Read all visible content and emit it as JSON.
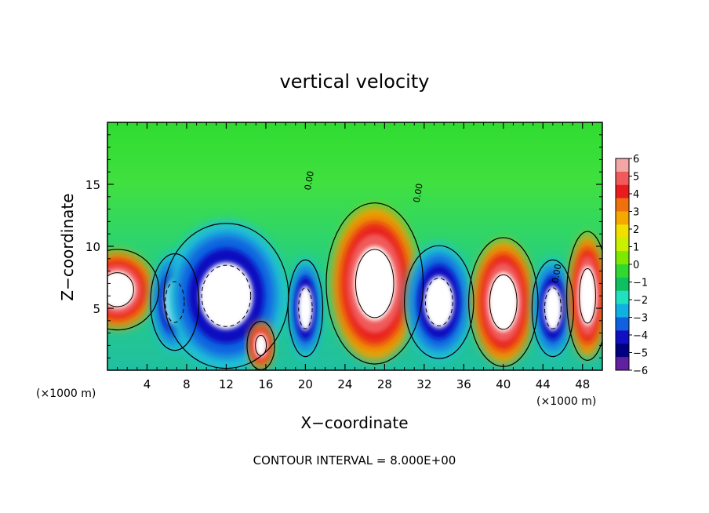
{
  "chart_data": {
    "type": "heatmap",
    "title": "vertical velocity",
    "xlabel": "X−coordinate",
    "ylabel": "Z−coordinate",
    "x_unit_left": "(×1000 m)",
    "x_unit_right": "(×1000 m)",
    "footer": "CONTOUR INTERVAL = 8.000E+00",
    "xlim": [
      0,
      50
    ],
    "ylim": [
      0,
      20
    ],
    "x_ticks": [
      "4",
      "8",
      "12",
      "16",
      "20",
      "24",
      "28",
      "32",
      "36",
      "40",
      "44",
      "48"
    ],
    "x_tick_values": [
      4,
      8,
      12,
      16,
      20,
      24,
      28,
      32,
      36,
      40,
      44,
      48
    ],
    "y_ticks": [
      "5",
      "10",
      "15"
    ],
    "y_tick_values": [
      5,
      10,
      15
    ],
    "contour_label": "0.00",
    "colorbar": {
      "min": -6,
      "max": 6,
      "labels": [
        "6",
        "5",
        "4",
        "3",
        "2",
        "1",
        "0",
        "−1",
        "−2",
        "−3",
        "−4",
        "−5",
        "−6"
      ],
      "label_values": [
        6,
        5,
        4,
        3,
        2,
        1,
        0,
        -1,
        -2,
        -3,
        -4,
        -5,
        -6
      ],
      "colors": [
        "#f2a6a6",
        "#f05a5a",
        "#e81c1c",
        "#f07010",
        "#f5a800",
        "#f0e000",
        "#c8f000",
        "#80e800",
        "#30d830",
        "#10c060",
        "#20e0c0",
        "#10b0e0",
        "#1060e0",
        "#1010c0",
        "#000080",
        "#6020a0"
      ]
    },
    "features": [
      {
        "x": 1.0,
        "z": 6.5,
        "w": 6,
        "h": 5,
        "sign": "up"
      },
      {
        "x": 6.8,
        "z": 5.5,
        "w": 3.5,
        "h": 6,
        "sign": "down"
      },
      {
        "x": 12.0,
        "z": 6.0,
        "w": 9,
        "h": 9,
        "sign": "down"
      },
      {
        "x": 15.5,
        "z": 2.0,
        "w": 2,
        "h": 3,
        "sign": "up"
      },
      {
        "x": 20.0,
        "z": 5.0,
        "w": 2.5,
        "h": 6,
        "sign": "down"
      },
      {
        "x": 27.0,
        "z": 7.0,
        "w": 7,
        "h": 10,
        "sign": "up"
      },
      {
        "x": 33.5,
        "z": 5.5,
        "w": 5,
        "h": 7,
        "sign": "down"
      },
      {
        "x": 40.0,
        "z": 5.5,
        "w": 5,
        "h": 8,
        "sign": "up"
      },
      {
        "x": 45.0,
        "z": 5.0,
        "w": 3,
        "h": 6,
        "sign": "down"
      },
      {
        "x": 48.5,
        "z": 6.0,
        "w": 3,
        "h": 8,
        "sign": "up"
      }
    ]
  }
}
